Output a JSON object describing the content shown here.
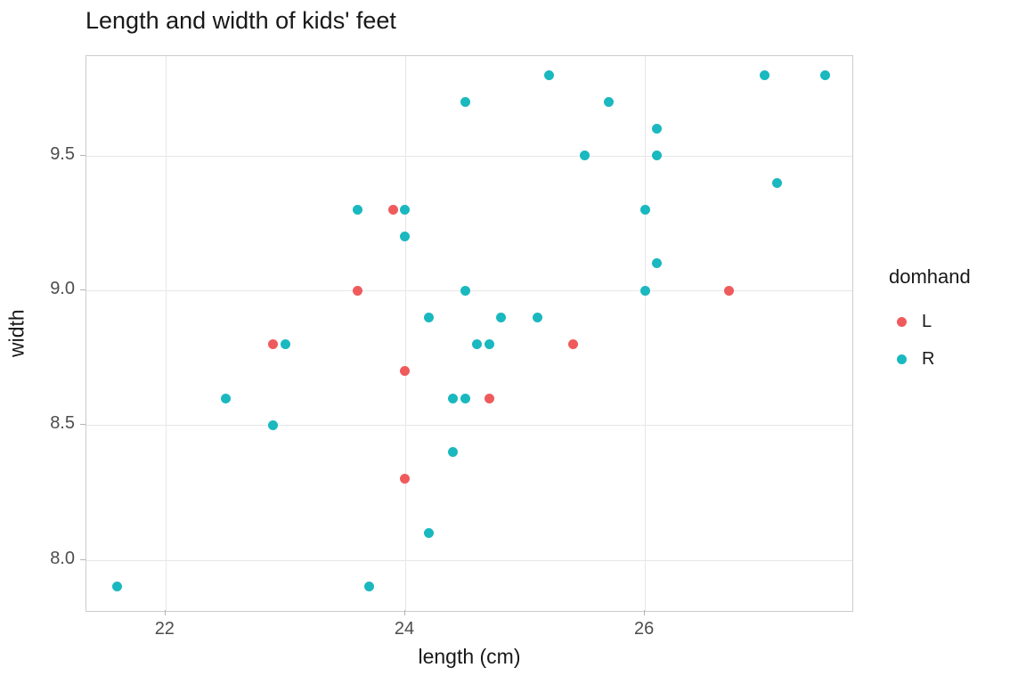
{
  "chart_data": {
    "type": "scatter",
    "title": "Length and width of kids' feet",
    "xlabel": "length (cm)",
    "ylabel": "width",
    "xlim": [
      21.34,
      27.73
    ],
    "ylim": [
      7.81,
      9.87
    ],
    "x_ticks": [
      22,
      24,
      26
    ],
    "x_tick_labels": [
      "22",
      "24",
      "26"
    ],
    "y_ticks": [
      8.0,
      8.5,
      9.0,
      9.5
    ],
    "y_tick_labels": [
      "8.0",
      "8.5",
      "9.0",
      "9.5"
    ],
    "grid": true,
    "legend_position": "right",
    "legend_title": "domhand",
    "series": [
      {
        "name": "L",
        "color": "#ef5b5c",
        "points": [
          [
            22.9,
            8.8
          ],
          [
            23.6,
            9.0
          ],
          [
            23.9,
            9.3
          ],
          [
            24.0,
            8.3
          ],
          [
            24.0,
            8.7
          ],
          [
            24.7,
            8.6
          ],
          [
            25.4,
            8.8
          ],
          [
            26.7,
            9.0
          ]
        ]
      },
      {
        "name": "R",
        "color": "#1ab8bf",
        "points": [
          [
            21.6,
            7.9
          ],
          [
            22.5,
            8.6
          ],
          [
            22.9,
            8.5
          ],
          [
            23.0,
            8.8
          ],
          [
            23.6,
            9.3
          ],
          [
            23.7,
            7.9
          ],
          [
            24.0,
            9.3
          ],
          [
            24.0,
            9.2
          ],
          [
            24.2,
            8.1
          ],
          [
            24.2,
            8.9
          ],
          [
            24.4,
            8.4
          ],
          [
            24.4,
            8.6
          ],
          [
            24.5,
            8.6
          ],
          [
            24.5,
            9.0
          ],
          [
            24.5,
            9.7
          ],
          [
            24.6,
            8.8
          ],
          [
            24.7,
            8.8
          ],
          [
            24.8,
            8.9
          ],
          [
            25.1,
            8.9
          ],
          [
            25.2,
            9.8
          ],
          [
            25.5,
            9.5
          ],
          [
            25.7,
            9.7
          ],
          [
            26.0,
            9.0
          ],
          [
            26.0,
            9.3
          ],
          [
            26.1,
            9.1
          ],
          [
            26.1,
            9.5
          ],
          [
            26.1,
            9.6
          ],
          [
            27.0,
            9.8
          ],
          [
            27.1,
            9.4
          ],
          [
            27.5,
            9.8
          ]
        ]
      }
    ]
  }
}
